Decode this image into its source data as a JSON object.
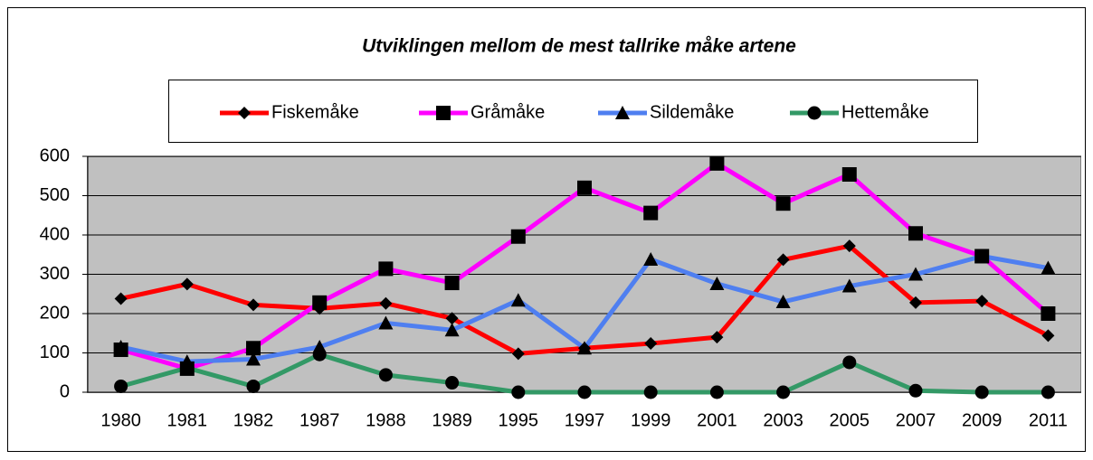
{
  "chart_data": {
    "type": "line",
    "title": "Utviklingen mellom de mest tallrike måke artene",
    "categories": [
      "1980",
      "1981",
      "1982",
      "1987",
      "1988",
      "1989",
      "1995",
      "1997",
      "1999",
      "2001",
      "2003",
      "2005",
      "2007",
      "2009",
      "2011"
    ],
    "series": [
      {
        "name": "Fiskemåke",
        "color": "#ff0000",
        "marker": "diamond",
        "values": [
          238,
          275,
          222,
          213,
          226,
          188,
          98,
          112,
          124,
          140,
          337,
          372,
          228,
          232,
          144
        ]
      },
      {
        "name": "Gråmåke",
        "color": "#ff00ff",
        "marker": "square",
        "values": [
          108,
          60,
          112,
          228,
          314,
          278,
          396,
          520,
          456,
          582,
          480,
          554,
          404,
          346,
          200
        ]
      },
      {
        "name": "Sildemåke",
        "color": "#4f7ff0",
        "marker": "triangle",
        "values": [
          115,
          78,
          84,
          115,
          176,
          158,
          234,
          112,
          338,
          276,
          230,
          270,
          300,
          346,
          316
        ]
      },
      {
        "name": "Hettemåke",
        "color": "#339966",
        "marker": "circle",
        "values": [
          15,
          62,
          15,
          96,
          44,
          24,
          0,
          0,
          0,
          0,
          0,
          76,
          4,
          0,
          0
        ]
      }
    ],
    "ylim": [
      0,
      600
    ],
    "yticks": [
      0,
      100,
      200,
      300,
      400,
      500,
      600
    ],
    "grid": true,
    "legend": "top"
  }
}
